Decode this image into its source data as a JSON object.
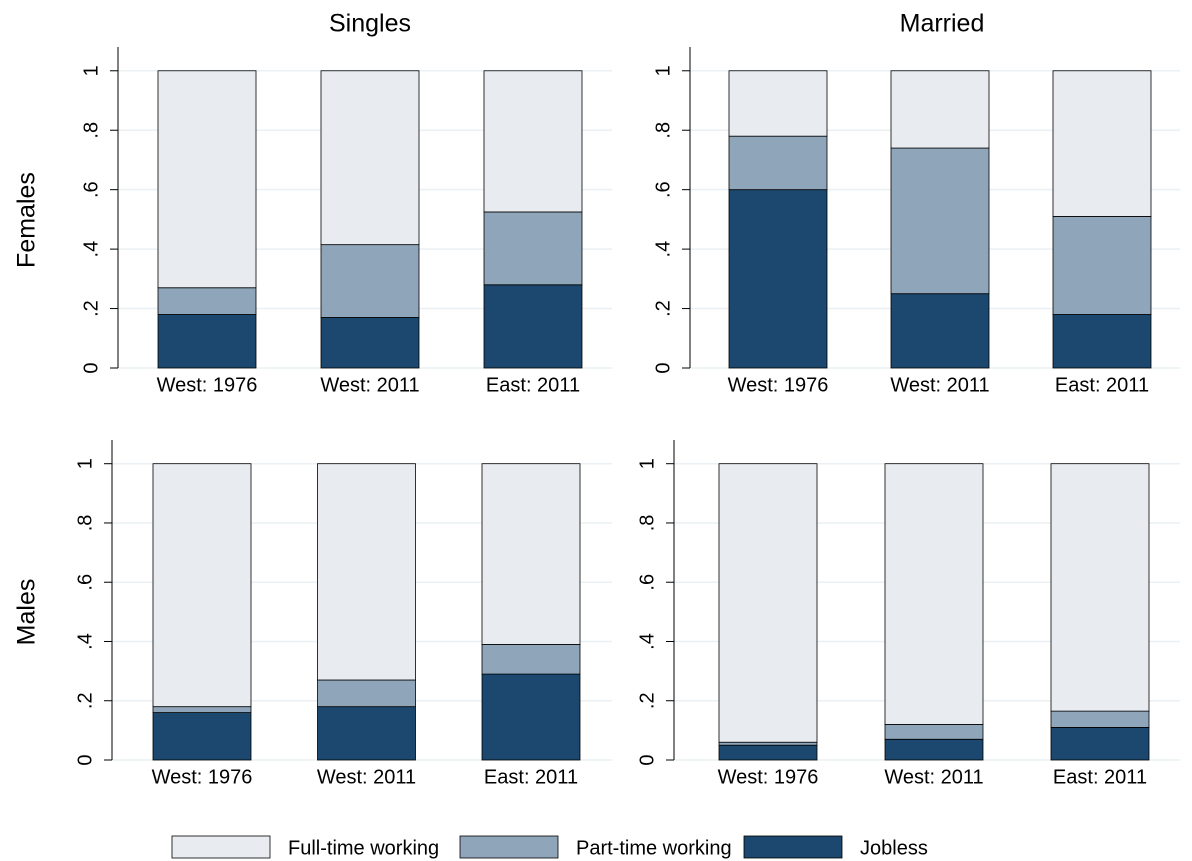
{
  "column_titles": [
    "Singles",
    "Married"
  ],
  "row_labels": [
    "Females",
    "Males"
  ],
  "chart_data": [
    {
      "type": "bar",
      "stacked": true,
      "grid": true,
      "categories": [
        "West: 1976",
        "West: 2011",
        "East: 2011"
      ],
      "series": [
        {
          "name": "Jobless",
          "color": "#1c476e",
          "values": [
            0.18,
            0.17,
            0.28
          ]
        },
        {
          "name": "Part-time working",
          "color": "#8fa5b9",
          "values": [
            0.09,
            0.245,
            0.245
          ]
        },
        {
          "name": "Full-time working",
          "color": "#e8ecf0",
          "values": [
            0.73,
            0.585,
            0.475
          ]
        }
      ],
      "ylim": [
        0,
        1.08
      ],
      "yticks": [
        0,
        {
          "value": 0.2,
          "label": ".2"
        },
        {
          "value": 0.4,
          "label": ".4"
        },
        {
          "value": 0.6,
          "label": ".6"
        },
        {
          "value": 0.8,
          "label": ".8"
        },
        1
      ]
    },
    {
      "type": "bar",
      "stacked": true,
      "grid": true,
      "categories": [
        "West: 1976",
        "West: 2011",
        "East: 2011"
      ],
      "series": [
        {
          "name": "Jobless",
          "color": "#1c476e",
          "values": [
            0.6,
            0.25,
            0.18
          ]
        },
        {
          "name": "Part-time working",
          "color": "#8fa5b9",
          "values": [
            0.18,
            0.49,
            0.33
          ]
        },
        {
          "name": "Full-time working",
          "color": "#e8ecf0",
          "values": [
            0.22,
            0.26,
            0.49
          ]
        }
      ],
      "ylim": [
        0,
        1.08
      ],
      "yticks": [
        0,
        {
          "value": 0.2,
          "label": ".2"
        },
        {
          "value": 0.4,
          "label": ".4"
        },
        {
          "value": 0.6,
          "label": ".6"
        },
        {
          "value": 0.8,
          "label": ".8"
        },
        1
      ]
    },
    {
      "type": "bar",
      "stacked": true,
      "grid": true,
      "categories": [
        "West: 1976",
        "West: 2011",
        "East: 2011"
      ],
      "series": [
        {
          "name": "Jobless",
          "color": "#1c476e",
          "values": [
            0.16,
            0.18,
            0.29
          ]
        },
        {
          "name": "Part-time working",
          "color": "#8fa5b9",
          "values": [
            0.02,
            0.09,
            0.1
          ]
        },
        {
          "name": "Full-time working",
          "color": "#e8ecf0",
          "values": [
            0.82,
            0.73,
            0.61
          ]
        }
      ],
      "ylim": [
        0,
        1.08
      ],
      "yticks": [
        0,
        {
          "value": 0.2,
          "label": ".2"
        },
        {
          "value": 0.4,
          "label": ".4"
        },
        {
          "value": 0.6,
          "label": ".6"
        },
        {
          "value": 0.8,
          "label": ".8"
        },
        1
      ]
    },
    {
      "type": "bar",
      "stacked": true,
      "grid": true,
      "categories": [
        "West: 1976",
        "West: 2011",
        "East: 2011"
      ],
      "series": [
        {
          "name": "Jobless",
          "color": "#1c476e",
          "values": [
            0.05,
            0.07,
            0.11
          ]
        },
        {
          "name": "Part-time working",
          "color": "#8fa5b9",
          "values": [
            0.01,
            0.05,
            0.055
          ]
        },
        {
          "name": "Full-time working",
          "color": "#e8ecf0",
          "values": [
            0.94,
            0.88,
            0.835
          ]
        }
      ],
      "ylim": [
        0,
        1.08
      ],
      "yticks": [
        0,
        {
          "value": 0.2,
          "label": ".2"
        },
        {
          "value": 0.4,
          "label": ".4"
        },
        {
          "value": 0.6,
          "label": ".6"
        },
        {
          "value": 0.8,
          "label": ".8"
        },
        1
      ]
    }
  ]
}
